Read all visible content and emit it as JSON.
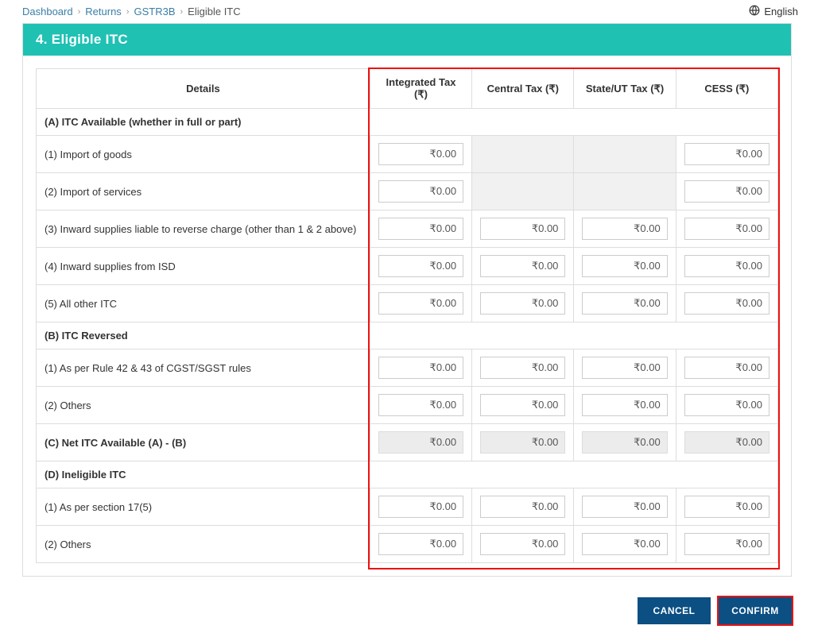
{
  "breadcrumb": {
    "items": [
      "Dashboard",
      "Returns",
      "GSTR3B"
    ],
    "current": "Eligible ITC"
  },
  "language": "English",
  "panel_title": "4. Eligible ITC",
  "columns": {
    "details": "Details",
    "igst": "Integrated Tax (₹)",
    "cgst": "Central Tax (₹)",
    "sgst": "State/UT Tax (₹)",
    "cess": "CESS (₹)"
  },
  "sections": {
    "A": "(A) ITC Available (whether in full or part)",
    "B": "(B) ITC Reversed",
    "C": "(C) Net ITC Available (A) - (B)",
    "D": "(D) Ineligible ITC"
  },
  "rows": {
    "a1": {
      "label": "(1) Import of goods",
      "igst": "₹0.00",
      "cgst": "",
      "sgst": "",
      "cess": "₹0.00",
      "cgst_enabled": false,
      "sgst_enabled": false
    },
    "a2": {
      "label": "(2) Import of services",
      "igst": "₹0.00",
      "cgst": "",
      "sgst": "",
      "cess": "₹0.00",
      "cgst_enabled": false,
      "sgst_enabled": false
    },
    "a3": {
      "label": "(3) Inward supplies liable to reverse charge (other than 1 & 2 above)",
      "igst": "₹0.00",
      "cgst": "₹0.00",
      "sgst": "₹0.00",
      "cess": "₹0.00"
    },
    "a4": {
      "label": "(4) Inward supplies from ISD",
      "igst": "₹0.00",
      "cgst": "₹0.00",
      "sgst": "₹0.00",
      "cess": "₹0.00"
    },
    "a5": {
      "label": "(5) All other ITC",
      "igst": "₹0.00",
      "cgst": "₹0.00",
      "sgst": "₹0.00",
      "cess": "₹0.00"
    },
    "b1": {
      "label": "(1) As per Rule 42 & 43 of CGST/SGST rules",
      "igst": "₹0.00",
      "cgst": "₹0.00",
      "sgst": "₹0.00",
      "cess": "₹0.00"
    },
    "b2": {
      "label": "(2) Others",
      "igst": "₹0.00",
      "cgst": "₹0.00",
      "sgst": "₹0.00",
      "cess": "₹0.00"
    },
    "c": {
      "igst": "₹0.00",
      "cgst": "₹0.00",
      "sgst": "₹0.00",
      "cess": "₹0.00"
    },
    "d1": {
      "label": "(1) As per section 17(5)",
      "igst": "₹0.00",
      "cgst": "₹0.00",
      "sgst": "₹0.00",
      "cess": "₹0.00"
    },
    "d2": {
      "label": "(2) Others",
      "igst": "₹0.00",
      "cgst": "₹0.00",
      "sgst": "₹0.00",
      "cess": "₹0.00"
    }
  },
  "buttons": {
    "cancel": "CANCEL",
    "confirm": "CONFIRM"
  },
  "colors": {
    "accent": "#1fc1b3",
    "link": "#3a7ea5",
    "button": "#0b4f83",
    "highlight": "#e11",
    "disabled_cell": "#f1f1f1",
    "readonly_bg": "#ececec",
    "border": "#ddd"
  }
}
